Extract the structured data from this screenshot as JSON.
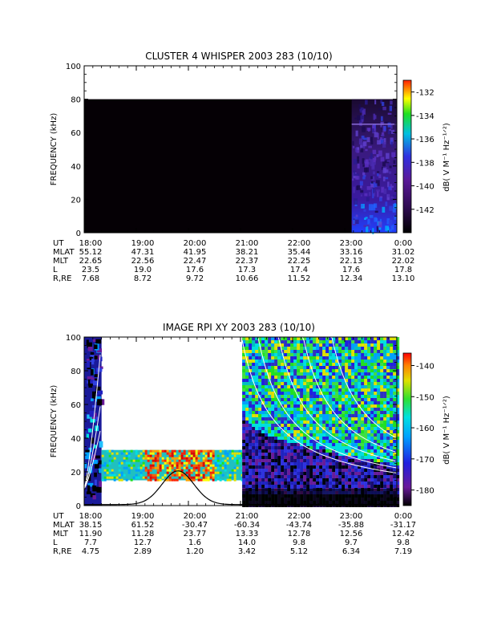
{
  "chart_data": [
    {
      "type": "heatmap",
      "title": "CLUSTER 4 WHISPER 2003 283 (10/10)",
      "ylabel": "FREQUENCY (kHz)",
      "ylim": [
        0,
        100
      ],
      "yticks": [
        "0",
        "20",
        "40",
        "60",
        "80",
        "100"
      ],
      "x": [
        "18:00",
        "19:00",
        "20:00",
        "21:00",
        "22:00",
        "23:00",
        "0:00"
      ],
      "colorbar": {
        "label": "dB( V M⁻¹ Hz⁻¹ᐟ²)",
        "ticks": [
          "-132",
          "-134",
          "-136",
          "-138",
          "-140",
          "-142"
        ],
        "range": [
          -144,
          -131
        ]
      },
      "colors": {
        "data_region": "#050005",
        "activity": "#3a1a9a"
      },
      "data_top_khz": 80,
      "activity": {
        "start": "23:08",
        "end": "0:00",
        "line_khz": 65
      },
      "ephemeris": {
        "labels": [
          "UT",
          "MLAT",
          "MLT",
          "L",
          "R,RE"
        ],
        "rows": [
          [
            "18:00",
            "19:00",
            "20:00",
            "21:00",
            "22:00",
            "23:00",
            "0:00"
          ],
          [
            "55.12",
            "47.31",
            "41.95",
            "38.21",
            "35.44",
            "33.16",
            "31.02"
          ],
          [
            "22.65",
            "22.56",
            "22.47",
            "22.37",
            "22.25",
            "22.13",
            "22.02"
          ],
          [
            "23.5",
            "19.0",
            "17.6",
            "17.3",
            "17.4",
            "17.6",
            "17.8"
          ],
          [
            "7.68",
            "8.72",
            "9.72",
            "10.66",
            "11.52",
            "12.34",
            "13.10"
          ]
        ]
      }
    },
    {
      "type": "heatmap",
      "title": "IMAGE RPI XY 2003 283 (10/10)",
      "ylabel": "FREQUENCY (kHz)",
      "ylim": [
        0,
        100
      ],
      "yticks": [
        "0",
        "20",
        "40",
        "60",
        "80",
        "100"
      ],
      "x": [
        "18:00",
        "19:00",
        "20:00",
        "21:00",
        "22:00",
        "23:00",
        "0:00"
      ],
      "colorbar": {
        "label": "dB( V M⁻¹ Hz⁻¹ᐟ²)",
        "ticks": [
          "-140",
          "-150",
          "-160",
          "-170",
          "-180"
        ],
        "range": [
          -185,
          -136
        ]
      },
      "ephemeris": {
        "labels": [
          "UT",
          "MLAT",
          "MLT",
          "L",
          "R,RE"
        ],
        "rows": [
          [
            "18:00",
            "19:00",
            "20:00",
            "21:00",
            "22:00",
            "23:00",
            "0:00"
          ],
          [
            "38.15",
            "61.52",
            "-30.47",
            "-60.34",
            "-43.74",
            "-35.88",
            "-31.17"
          ],
          [
            "11.90",
            "11.28",
            "23.77",
            "13.33",
            "12.78",
            "12.56",
            "12.42"
          ],
          [
            "7.7",
            "12.7",
            "1.6",
            "14.0",
            "9.8",
            "9.7",
            "9.8"
          ],
          [
            "4.75",
            "2.89",
            "1.20",
            "3.42",
            "5.12",
            "6.34",
            "7.19"
          ]
        ]
      },
      "coverage": [
        {
          "start": "18:00",
          "end": "18:20",
          "fmin": 0,
          "fmax": 100
        },
        {
          "start": "18:20",
          "end": "21:02",
          "fmin": 15,
          "fmax": 33
        },
        {
          "start": "21:02",
          "end": "0:00",
          "fmin": 0,
          "fmax": 100
        }
      ],
      "plasma_frequency_peak": {
        "time": "19:48",
        "khz": 20
      }
    }
  ]
}
